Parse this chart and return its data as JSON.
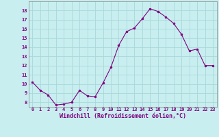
{
  "x": [
    0,
    1,
    2,
    3,
    4,
    5,
    6,
    7,
    8,
    9,
    10,
    11,
    12,
    13,
    14,
    15,
    16,
    17,
    18,
    19,
    20,
    21,
    22,
    23
  ],
  "y": [
    10.2,
    9.3,
    8.8,
    7.7,
    7.8,
    8.0,
    9.3,
    8.7,
    8.6,
    10.1,
    11.8,
    14.2,
    15.7,
    16.1,
    17.1,
    18.2,
    17.9,
    17.3,
    16.6,
    15.4,
    13.6,
    13.8,
    12.0,
    12.0
  ],
  "line_color": "#800080",
  "marker_color": "#800080",
  "bg_color": "#c8eef0",
  "grid_color": "#a8d8da",
  "xlabel": "Windchill (Refroidissement éolien,°C)",
  "xlabel_color": "#800080",
  "tick_color": "#800080",
  "ylim": [
    7.5,
    19.0
  ],
  "xlim": [
    -0.5,
    23.5
  ],
  "yticks": [
    8,
    9,
    10,
    11,
    12,
    13,
    14,
    15,
    16,
    17,
    18
  ],
  "xticks": [
    0,
    1,
    2,
    3,
    4,
    5,
    6,
    7,
    8,
    9,
    10,
    11,
    12,
    13,
    14,
    15,
    16,
    17,
    18,
    19,
    20,
    21,
    22,
    23
  ],
  "tick_fontsize": 5.0,
  "xlabel_fontsize": 6.0,
  "linewidth": 0.8,
  "markersize": 2.0
}
